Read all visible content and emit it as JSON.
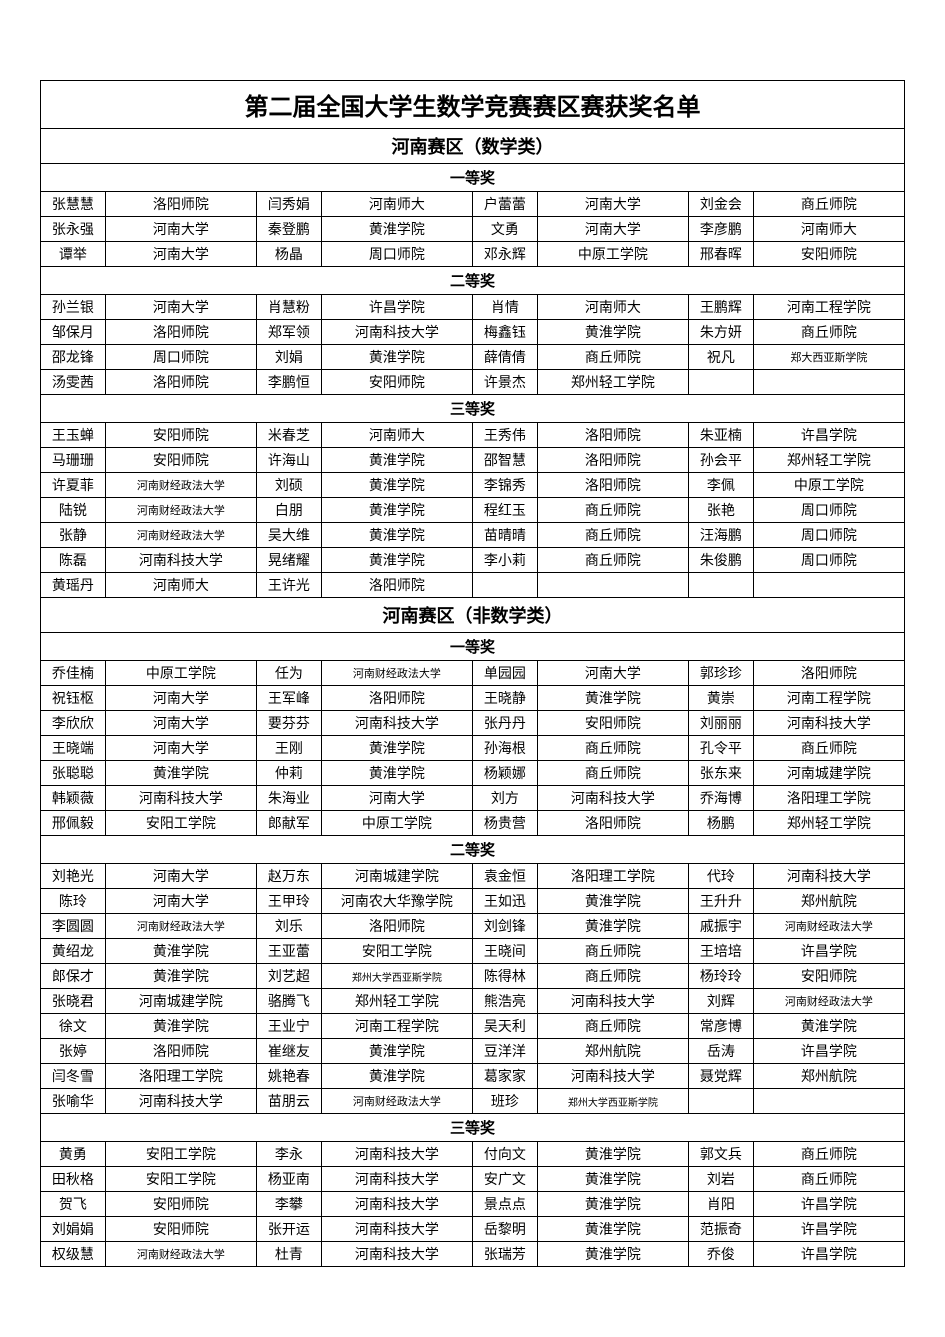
{
  "title": "第二届全国大学生数学竞赛赛区赛获奖名单",
  "section1": "河南赛区（数学类）",
  "section2": "河南赛区（非数学类）",
  "prize1": "一等奖",
  "prize2": "二等奖",
  "prize3": "三等奖",
  "m1": {
    "rows": [
      [
        "张慧慧",
        "洛阳师院",
        "闫秀娟",
        "河南师大",
        "户蕾蕾",
        "河南大学",
        "刘金会",
        "商丘师院"
      ],
      [
        "张永强",
        "河南大学",
        "秦登鹏",
        "黄淮学院",
        "文勇",
        "河南大学",
        "李彦鹏",
        "河南师大"
      ],
      [
        "谭举",
        "河南大学",
        "杨晶",
        "周口师院",
        "邓永辉",
        "中原工学院",
        "邢春晖",
        "安阳师院"
      ]
    ]
  },
  "m2": {
    "rows": [
      [
        "孙兰银",
        "河南大学",
        "肖慧粉",
        "许昌学院",
        "肖情",
        "河南师大",
        "王鹏辉",
        "河南工程学院"
      ],
      [
        "邹保月",
        "洛阳师院",
        "郑军领",
        "河南科技大学",
        "梅鑫钰",
        "黄淮学院",
        "朱方妍",
        "商丘师院"
      ],
      [
        "邵龙锋",
        "周口师院",
        "刘娟",
        "黄淮学院",
        "薛倩倩",
        "商丘师院",
        "祝凡",
        "郑大西亚斯学院"
      ],
      [
        "汤雯茜",
        "洛阳师院",
        "李鹏恒",
        "安阳师院",
        "许景杰",
        "郑州轻工学院",
        "",
        ""
      ]
    ]
  },
  "m3": {
    "rows": [
      [
        "王玉蝉",
        "安阳师院",
        "米春芝",
        "河南师大",
        "王秀伟",
        "洛阳师院",
        "朱亚楠",
        "许昌学院"
      ],
      [
        "马珊珊",
        "安阳师院",
        "许海山",
        "黄淮学院",
        "邵智慧",
        "洛阳师院",
        "孙会平",
        "郑州轻工学院"
      ],
      [
        "许夏菲",
        "河南财经政法大学",
        "刘硕",
        "黄淮学院",
        "李锦秀",
        "洛阳师院",
        "李佩",
        "中原工学院"
      ],
      [
        "陆锐",
        "河南财经政法大学",
        "白朋",
        "黄淮学院",
        "程红玉",
        "商丘师院",
        "张艳",
        "周口师院"
      ],
      [
        "张静",
        "河南财经政法大学",
        "吴大维",
        "黄淮学院",
        "苗晴晴",
        "商丘师院",
        "汪海鹏",
        "周口师院"
      ],
      [
        "陈磊",
        "河南科技大学",
        "晃绪耀",
        "黄淮学院",
        "李小莉",
        "商丘师院",
        "朱俊鹏",
        "周口师院"
      ],
      [
        "黄瑶丹",
        "河南师大",
        "王许光",
        "洛阳师院",
        "",
        "",
        "",
        ""
      ]
    ]
  },
  "n1": {
    "rows": [
      [
        "乔佳楠",
        "中原工学院",
        "任为",
        "河南财经政法大学",
        "单园园",
        "河南大学",
        "郭珍珍",
        "洛阳师院"
      ],
      [
        "祝钰枢",
        "河南大学",
        "王军峰",
        "洛阳师院",
        "王晓静",
        "黄淮学院",
        "黄崇",
        "河南工程学院"
      ],
      [
        "李欣欣",
        "河南大学",
        "要芬芬",
        "河南科技大学",
        "张丹丹",
        "安阳师院",
        "刘丽丽",
        "河南科技大学"
      ],
      [
        "王晓端",
        "河南大学",
        "王刚",
        "黄淮学院",
        "孙海根",
        "商丘师院",
        "孔令平",
        "商丘师院"
      ],
      [
        "张聪聪",
        "黄淮学院",
        "仲莉",
        "黄淮学院",
        "杨颖娜",
        "商丘师院",
        "张东来",
        "河南城建学院"
      ],
      [
        "韩颖薇",
        "河南科技大学",
        "朱海业",
        "河南大学",
        "刘方",
        "河南科技大学",
        "乔海博",
        "洛阳理工学院"
      ],
      [
        "邢佩毅",
        "安阳工学院",
        "郎献军",
        "中原工学院",
        "杨贵营",
        "洛阳师院",
        "杨鹏",
        "郑州轻工学院"
      ]
    ]
  },
  "n2": {
    "rows": [
      [
        "刘艳光",
        "河南大学",
        "赵万东",
        "河南城建学院",
        "袁金恒",
        "洛阳理工学院",
        "代玲",
        "河南科技大学"
      ],
      [
        "陈玲",
        "河南大学",
        "王甲玲",
        "河南农大华豫学院",
        "王如迅",
        "黄淮学院",
        "王升升",
        "郑州航院"
      ],
      [
        "李圆圆",
        "河南财经政法大学",
        "刘乐",
        "洛阳师院",
        "刘剑锋",
        "黄淮学院",
        "戚振宇",
        "河南财经政法大学"
      ],
      [
        "黄绍龙",
        "黄淮学院",
        "王亚蕾",
        "安阳工学院",
        "王晓间",
        "商丘师院",
        "王培培",
        "许昌学院"
      ],
      [
        "郎保才",
        "黄淮学院",
        "刘艺超",
        "郑州大学西亚斯学院",
        "陈得林",
        "商丘师院",
        "杨玲玲",
        "安阳师院"
      ],
      [
        "张晓君",
        "河南城建学院",
        "骆腾飞",
        "郑州轻工学院",
        "熊浩亮",
        "河南科技大学",
        "刘辉",
        "河南财经政法大学"
      ],
      [
        "徐文",
        "黄淮学院",
        "王业宁",
        "河南工程学院",
        "吴天利",
        "商丘师院",
        "常彦博",
        "黄淮学院"
      ],
      [
        "张婷",
        "洛阳师院",
        "崔继友",
        "黄淮学院",
        "豆洋洋",
        "郑州航院",
        "岳涛",
        "许昌学院"
      ],
      [
        "闫冬雪",
        "洛阳理工学院",
        "姚艳春",
        "黄淮学院",
        "葛家家",
        "河南科技大学",
        "聂党辉",
        "郑州航院"
      ],
      [
        "张喻华",
        "河南科技大学",
        "苗朋云",
        "河南财经政法大学",
        "班珍",
        "郑州大学西亚斯学院",
        "",
        ""
      ]
    ]
  },
  "n3": {
    "rows": [
      [
        "黄勇",
        "安阳工学院",
        "李永",
        "河南科技大学",
        "付向文",
        "黄淮学院",
        "郭文兵",
        "商丘师院"
      ],
      [
        "田秋格",
        "安阳工学院",
        "杨亚南",
        "河南科技大学",
        "安广文",
        "黄淮学院",
        "刘岩",
        "商丘师院"
      ],
      [
        "贺飞",
        "安阳师院",
        "李攀",
        "河南科技大学",
        "景点点",
        "黄淮学院",
        "肖阳",
        "许昌学院"
      ],
      [
        "刘娟娟",
        "安阳师院",
        "张开运",
        "河南科技大学",
        "岳黎明",
        "黄淮学院",
        "范振奇",
        "许昌学院"
      ],
      [
        "权级慧",
        "河南财经政法大学",
        "杜青",
        "河南科技大学",
        "张瑞芳",
        "黄淮学院",
        "乔俊",
        "许昌学院"
      ]
    ]
  },
  "smallCells": [
    "河南财经政法大学",
    "郑州大学西亚斯学院",
    "郑大西亚斯学院"
  ]
}
